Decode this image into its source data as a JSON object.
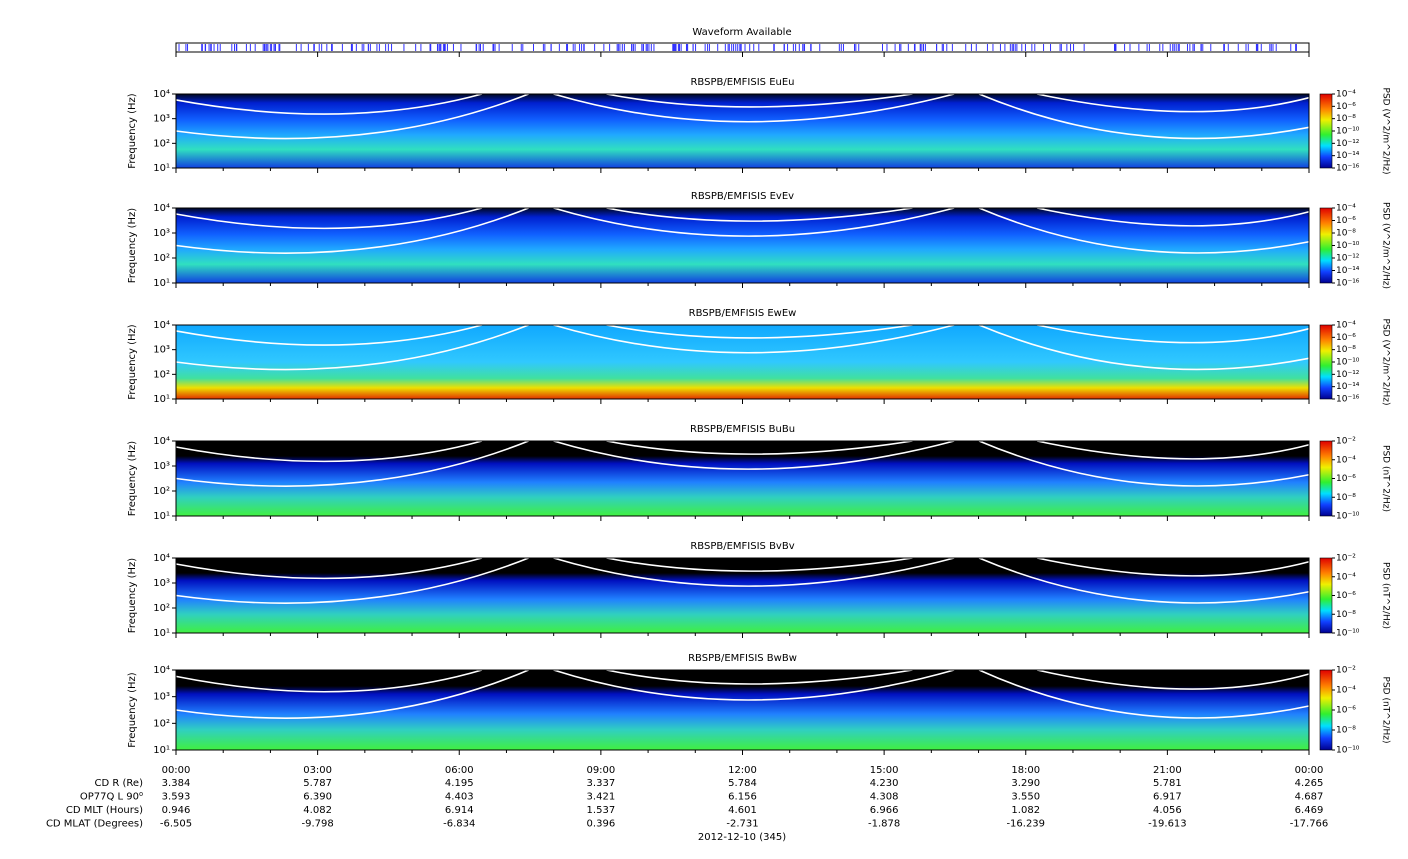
{
  "waveform": {
    "title": "Waveform Available"
  },
  "panels": [
    {
      "title": "RBSPB/EMFISIS  EuEu",
      "ylabel": "Frequency (Hz)",
      "log_scale": true,
      "ylim": [
        10,
        10000
      ],
      "yticks": [
        {
          "value": 10,
          "label": "10¹"
        },
        {
          "value": 100,
          "label": "10²"
        },
        {
          "value": 1000,
          "label": "10³"
        },
        {
          "value": 10000,
          "label": "10⁴"
        }
      ],
      "colorbar": {
        "label": "PSD (V^2/m^2/Hz)",
        "lim": [
          1e-16,
          0.0001
        ],
        "ticks": [
          {
            "value": 0.0001,
            "label": "10⁻⁴"
          },
          {
            "value": 1e-06,
            "label": "10⁻⁶"
          },
          {
            "value": 1e-08,
            "label": "10⁻⁸"
          },
          {
            "value": 1e-10,
            "label": "10⁻¹⁰"
          },
          {
            "value": 1e-12,
            "label": "10⁻¹²"
          },
          {
            "value": 1e-14,
            "label": "10⁻¹⁴"
          },
          {
            "value": 1e-16,
            "label": "10⁻¹⁶"
          }
        ]
      }
    },
    {
      "title": "RBSPB/EMFISIS  EvEv",
      "ylabel": "Frequency (Hz)",
      "log_scale": true,
      "ylim": [
        10,
        10000
      ],
      "yticks": [
        {
          "value": 10,
          "label": "10¹"
        },
        {
          "value": 100,
          "label": "10²"
        },
        {
          "value": 1000,
          "label": "10³"
        },
        {
          "value": 10000,
          "label": "10⁴"
        }
      ],
      "colorbar": {
        "label": "PSD (V^2/m^2/Hz)",
        "lim": [
          1e-16,
          0.0001
        ],
        "ticks": [
          {
            "value": 0.0001,
            "label": "10⁻⁴"
          },
          {
            "value": 1e-06,
            "label": "10⁻⁶"
          },
          {
            "value": 1e-08,
            "label": "10⁻⁸"
          },
          {
            "value": 1e-10,
            "label": "10⁻¹⁰"
          },
          {
            "value": 1e-12,
            "label": "10⁻¹²"
          },
          {
            "value": 1e-14,
            "label": "10⁻¹⁴"
          },
          {
            "value": 1e-16,
            "label": "10⁻¹⁶"
          }
        ]
      }
    },
    {
      "title": "RBSPB/EMFISIS  EwEw",
      "ylabel": "Frequency (Hz)",
      "log_scale": true,
      "ylim": [
        10,
        10000
      ],
      "yticks": [
        {
          "value": 10,
          "label": "10¹"
        },
        {
          "value": 100,
          "label": "10²"
        },
        {
          "value": 1000,
          "label": "10³"
        },
        {
          "value": 10000,
          "label": "10⁴"
        }
      ],
      "colorbar": {
        "label": "PSD (V^2/m^2/Hz)",
        "lim": [
          1e-16,
          0.0001
        ],
        "ticks": [
          {
            "value": 0.0001,
            "label": "10⁻⁴"
          },
          {
            "value": 1e-06,
            "label": "10⁻⁶"
          },
          {
            "value": 1e-08,
            "label": "10⁻⁸"
          },
          {
            "value": 1e-10,
            "label": "10⁻¹⁰"
          },
          {
            "value": 1e-12,
            "label": "10⁻¹²"
          },
          {
            "value": 1e-14,
            "label": "10⁻¹⁴"
          },
          {
            "value": 1e-16,
            "label": "10⁻¹⁶"
          }
        ]
      }
    },
    {
      "title": "RBSPB/EMFISIS  BuBu",
      "ylabel": "Frequency (Hz)",
      "log_scale": true,
      "ylim": [
        10,
        10000
      ],
      "yticks": [
        {
          "value": 10,
          "label": "10¹"
        },
        {
          "value": 100,
          "label": "10²"
        },
        {
          "value": 1000,
          "label": "10³"
        },
        {
          "value": 10000,
          "label": "10⁴"
        }
      ],
      "colorbar": {
        "label": "PSD (nT^2/Hz)",
        "lim": [
          1e-10,
          0.01
        ],
        "ticks": [
          {
            "value": 0.01,
            "label": "10⁻²"
          },
          {
            "value": 0.0001,
            "label": "10⁻⁴"
          },
          {
            "value": 1e-06,
            "label": "10⁻⁶"
          },
          {
            "value": 1e-08,
            "label": "10⁻⁸"
          },
          {
            "value": 1e-10,
            "label": "10⁻¹⁰"
          }
        ]
      }
    },
    {
      "title": "RBSPB/EMFISIS  BvBv",
      "ylabel": "Frequency (Hz)",
      "log_scale": true,
      "ylim": [
        10,
        10000
      ],
      "yticks": [
        {
          "value": 10,
          "label": "10¹"
        },
        {
          "value": 100,
          "label": "10²"
        },
        {
          "value": 1000,
          "label": "10³"
        },
        {
          "value": 10000,
          "label": "10⁴"
        }
      ],
      "colorbar": {
        "label": "PSD (nT^2/Hz)",
        "lim": [
          1e-10,
          0.01
        ],
        "ticks": [
          {
            "value": 0.01,
            "label": "10⁻²"
          },
          {
            "value": 0.0001,
            "label": "10⁻⁴"
          },
          {
            "value": 1e-06,
            "label": "10⁻⁶"
          },
          {
            "value": 1e-08,
            "label": "10⁻⁸"
          },
          {
            "value": 1e-10,
            "label": "10⁻¹⁰"
          }
        ]
      }
    },
    {
      "title": "RBSPB/EMFISIS  BwBw",
      "ylabel": "Frequency (Hz)",
      "log_scale": true,
      "ylim": [
        10,
        10000
      ],
      "yticks": [
        {
          "value": 10,
          "label": "10¹"
        },
        {
          "value": 100,
          "label": "10²"
        },
        {
          "value": 1000,
          "label": "10³"
        },
        {
          "value": 10000,
          "label": "10⁴"
        }
      ],
      "colorbar": {
        "label": "PSD (nT^2/Hz)",
        "lim": [
          1e-10,
          0.01
        ],
        "ticks": [
          {
            "value": 0.01,
            "label": "10⁻²"
          },
          {
            "value": 0.0001,
            "label": "10⁻⁴"
          },
          {
            "value": 1e-06,
            "label": "10⁻⁶"
          },
          {
            "value": 1e-08,
            "label": "10⁻⁸"
          },
          {
            "value": 1e-10,
            "label": "10⁻¹⁰"
          }
        ]
      }
    }
  ],
  "xaxis": {
    "ticks": [
      "00:00",
      "03:00",
      "06:00",
      "09:00",
      "12:00",
      "15:00",
      "18:00",
      "21:00",
      "00:00"
    ]
  },
  "ephemeris": {
    "rows": [
      {
        "label": "CD R (Re)",
        "values": [
          "3.384",
          "5.787",
          "4.195",
          "3.337",
          "5.784",
          "4.230",
          "3.290",
          "5.781",
          "4.265"
        ]
      },
      {
        "label": "OP77Q L 90⁰",
        "values": [
          "3.593",
          "6.390",
          "4.403",
          "3.421",
          "6.156",
          "4.308",
          "3.550",
          "6.917",
          "4.687"
        ]
      },
      {
        "label": "CD MLT (Hours)",
        "values": [
          "0.946",
          "4.082",
          "6.914",
          "1.537",
          "4.601",
          "6.966",
          "1.082",
          "4.056",
          "6.469"
        ]
      },
      {
        "label": "CD MLAT (Degrees)",
        "values": [
          "-6.505",
          "-9.798",
          "-6.834",
          "0.396",
          "-2.731",
          "-1.878",
          "-16.239",
          "-19.613",
          "-17.766"
        ]
      }
    ]
  },
  "date": "2012-12-10 (345)"
}
